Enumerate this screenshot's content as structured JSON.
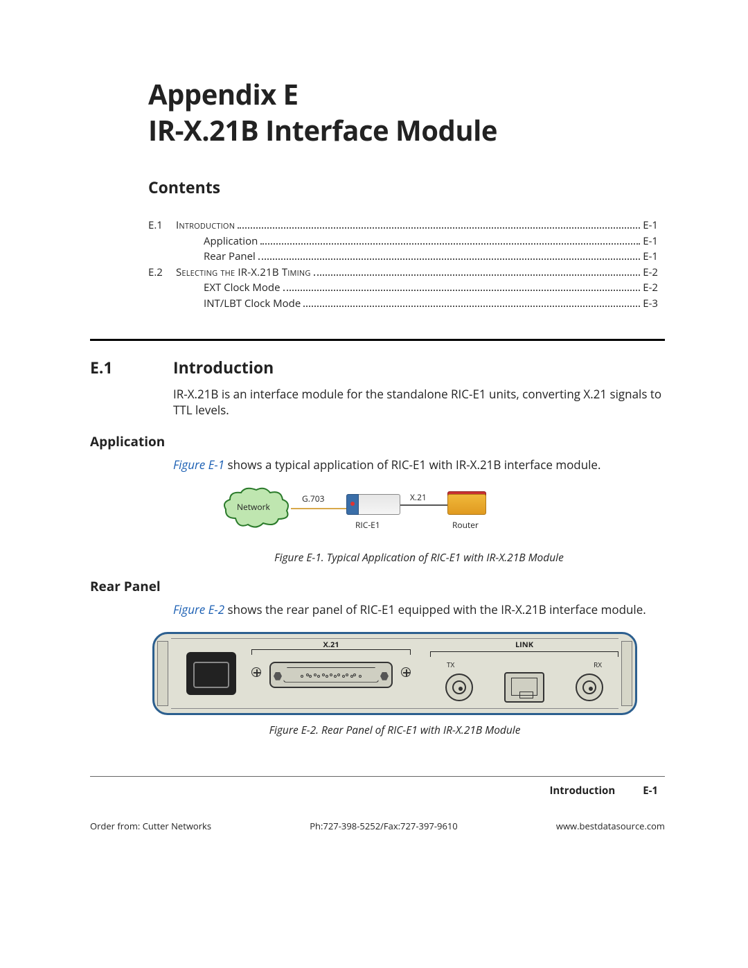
{
  "title": {
    "line1": "Appendix E",
    "line2": "IR-X.21B Interface Module"
  },
  "contents_heading": "Contents",
  "toc": [
    {
      "num": "E.1",
      "text": "Introduction",
      "page": "E-1",
      "smallcaps": true,
      "indent": 0
    },
    {
      "num": "",
      "text": "Application",
      "page": "E-1",
      "smallcaps": false,
      "indent": 1
    },
    {
      "num": "",
      "text": "Rear Panel",
      "page": "E-1",
      "smallcaps": false,
      "indent": 1
    },
    {
      "num": "E.2",
      "text": "Selecting the IR-X.21B Timing",
      "page": "E-2",
      "smallcaps": true,
      "indent": 0
    },
    {
      "num": "",
      "text": "EXT Clock Mode",
      "page": "E-2",
      "smallcaps": false,
      "indent": 1
    },
    {
      "num": "",
      "text": "INT/LBT Clock Mode",
      "page": "E-3",
      "smallcaps": false,
      "indent": 1
    }
  ],
  "section": {
    "num": "E.1",
    "title": "Introduction"
  },
  "intro_body": "IR-X.21B is an interface module for the standalone RIC-E1 units, converting X.21 signals to TTL levels.",
  "application": {
    "heading": "Application",
    "ref": "Figure E-1",
    "text": " shows a typical application of RIC-E1 with IR-X.21B interface module."
  },
  "fig1": {
    "network": "Network",
    "g703": "G.703",
    "rice1": "RIC-E1",
    "x21": "X.21",
    "router": "Router",
    "caption": "Figure E-1.  Typical Application of RIC-E1 with IR-X.21B Module",
    "colors": {
      "cloud_fill": "#bfe6b0",
      "cloud_stroke": "#2a7a2a",
      "wire": "#d8a84a"
    }
  },
  "rearpanel": {
    "heading": "Rear Panel",
    "ref": "Figure E-2",
    "text": " shows the rear panel of RIC-E1 equipped with the IR-X.21B interface module."
  },
  "fig2": {
    "x21_label": "X.21",
    "link_label": "LINK",
    "tx": "TX",
    "rx": "RX",
    "caption": "Figure E-2.  Rear Panel of RIC-E1 with IR-X.21B Module",
    "colors": {
      "border": "#2c5f8f",
      "body": "#e0e0d4"
    }
  },
  "footer": {
    "section": "Introduction",
    "page": "E-1",
    "order": "Order from: Cutter Networks",
    "phone": "Ph:727-398-5252/Fax:727-397-9610",
    "url": "www.bestdatasource.com"
  }
}
